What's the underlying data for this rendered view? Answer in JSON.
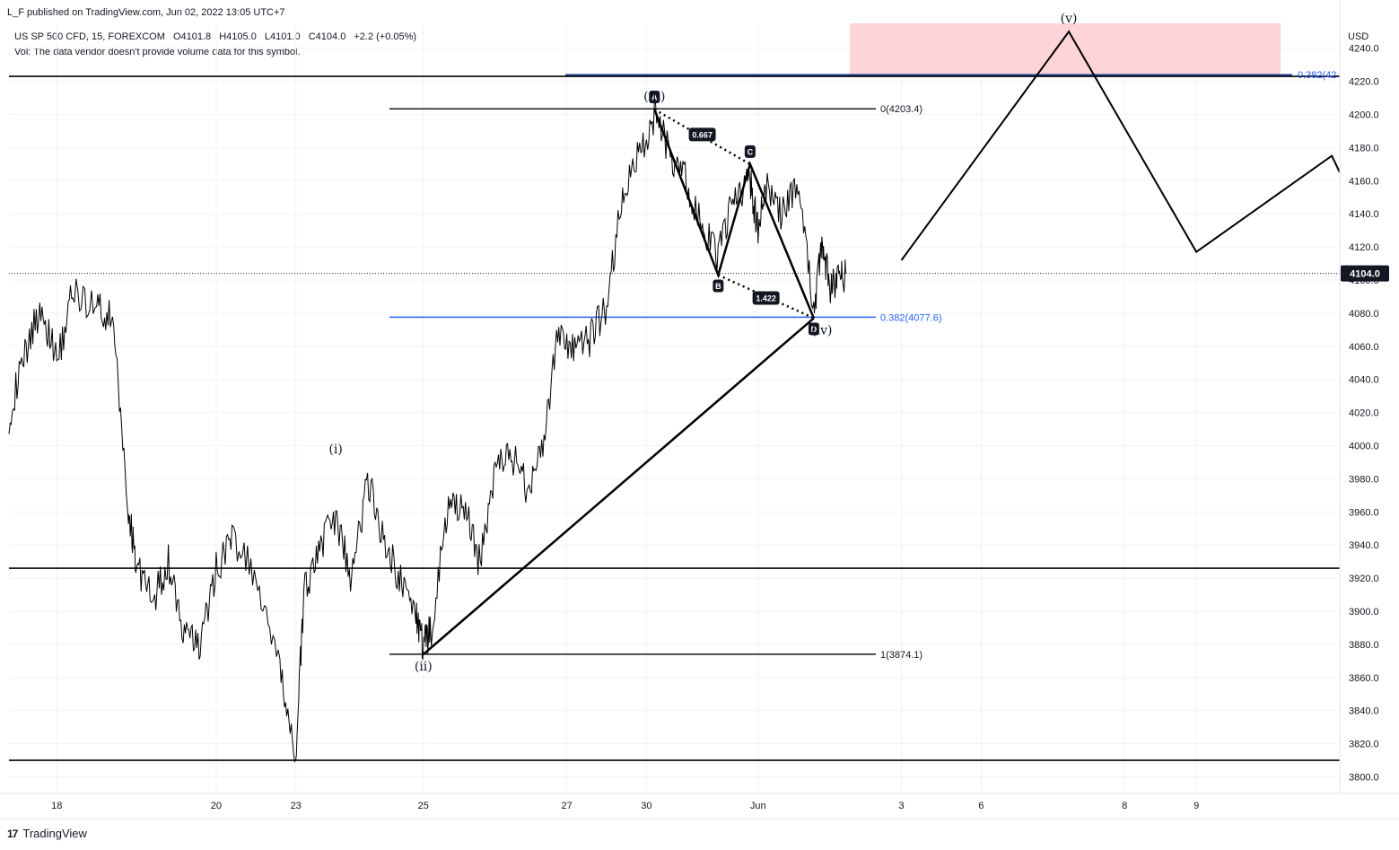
{
  "header": {
    "publisher": "L_F published on TradingView.com, Jun 02, 2022 13:05 UTC+7",
    "symbol": "US SP 500 CFD, 15, FOREXCOM",
    "ohlc": {
      "open": "O4101.8",
      "high": "H4105.0",
      "low": "L4101.0",
      "close": "C4104.0",
      "change": "+2.2 (+0.05%)"
    },
    "volume_note": "Vol: The data vendor doesn't provide volume data for this symbol."
  },
  "footer": {
    "brand": "TradingView",
    "logo_icon": "tradingview-logo-icon"
  },
  "chart_data": {
    "type": "line",
    "title": "US SP 500 CFD, 15, FOREXCOM",
    "currency": "USD",
    "ylim": [
      3790,
      4255
    ],
    "y_ticks": [
      3800,
      3820,
      3840,
      3860,
      3880,
      3900,
      3920,
      3940,
      3960,
      3980,
      4000,
      4020,
      4040,
      4060,
      4080,
      4100,
      4120,
      4140,
      4160,
      4180,
      4200,
      4220,
      4240
    ],
    "x_ticks": [
      "18",
      "20",
      "23",
      "25",
      "27",
      "30",
      "Jun",
      "3",
      "6",
      "8",
      "9"
    ],
    "x_tick_pos": [
      0.3,
      1.3,
      1.8,
      2.6,
      3.5,
      4.0,
      4.7,
      5.6,
      6.1,
      7.0,
      7.45
    ],
    "last_price": "4104.0",
    "last_price_value": 4104.0,
    "price_series": {
      "name": "",
      "x": [
        0.0,
        0.1,
        0.2,
        0.3,
        0.4,
        0.55,
        0.65,
        0.75,
        0.8,
        0.9,
        1.0,
        1.1,
        1.2,
        1.3,
        1.4,
        1.55,
        1.7,
        1.8,
        1.85,
        1.95,
        2.05,
        2.15,
        2.25,
        2.35,
        2.45,
        2.55,
        2.6,
        2.65,
        2.75,
        2.85,
        2.95,
        3.05,
        3.15,
        3.25,
        3.35,
        3.45,
        3.55,
        3.65,
        3.75,
        3.85,
        3.95,
        4.05,
        4.15,
        4.25,
        4.35,
        4.45,
        4.55,
        4.65,
        4.7,
        4.75,
        4.85,
        4.95,
        5.05,
        5.1,
        5.15,
        5.2,
        5.25
      ],
      "values": [
        4018,
        4055,
        4085,
        4050,
        4092,
        4085,
        4075,
        3960,
        3930,
        3905,
        3930,
        3885,
        3880,
        3925,
        3945,
        3920,
        3862,
        3812,
        3910,
        3940,
        3955,
        3920,
        3980,
        3945,
        3920,
        3900,
        3878,
        3890,
        3960,
        3965,
        3930,
        3985,
        3995,
        3975,
        4000,
        4070,
        4055,
        4065,
        4085,
        4150,
        4175,
        4200,
        4175,
        4160,
        4130,
        4115,
        4150,
        4160,
        4130,
        4155,
        4140,
        4160,
        4080,
        4125,
        4095,
        4100,
        4104
      ]
    },
    "horizontal_levels": [
      {
        "kind": "support-resistance",
        "value": 4223
      },
      {
        "kind": "support-resistance",
        "value": 3926
      },
      {
        "kind": "support-resistance",
        "value": 3810
      }
    ],
    "fib_levels": [
      {
        "label": "0(4203.4)",
        "value": 4203.4,
        "color": "#131722"
      },
      {
        "label": "0.382(4077.6)",
        "value": 4077.6,
        "color": "#2962ff"
      },
      {
        "label": "1(3874.1)",
        "value": 3874.1,
        "color": "#131722"
      }
    ],
    "fib_extension": {
      "label": "0.382(42",
      "value": 4223,
      "color": "#2962ff"
    },
    "target_zone": {
      "y_from": 4224,
      "y_to": 4255,
      "color": "#fdd5d8"
    },
    "wave_labels": [
      {
        "label": "(i)",
        "x": 2.05,
        "value": 3990,
        "placement": "above"
      },
      {
        "label": "(ii)",
        "x": 2.6,
        "value": 3874,
        "placement": "below"
      },
      {
        "label": "(iii)",
        "x": 4.05,
        "value": 4203,
        "placement": "above"
      },
      {
        "label": "(iv)",
        "x": 5.1,
        "value": 4077,
        "placement": "below"
      },
      {
        "label": "(v)",
        "x": 6.65,
        "value": 4250,
        "placement": "above"
      }
    ],
    "wave_iii_iv_line": {
      "points": [
        {
          "x": 2.6,
          "value": 3874
        },
        {
          "x": 5.05,
          "value": 4077
        }
      ]
    },
    "harmonic_pattern": {
      "points": [
        {
          "label": "A",
          "x": 4.05,
          "value": 4203
        },
        {
          "label": "B",
          "x": 4.45,
          "value": 4103
        },
        {
          "label": "C",
          "x": 4.65,
          "value": 4170
        },
        {
          "label": "D",
          "x": 5.05,
          "value": 4077
        }
      ],
      "ratios": [
        {
          "label": "0.667",
          "between": "A-C"
        },
        {
          "label": "1.422",
          "between": "B-D"
        }
      ]
    },
    "projection_path": {
      "points": [
        {
          "x": 5.6,
          "value": 4112
        },
        {
          "x": 6.65,
          "value": 4250
        },
        {
          "x": 7.45,
          "value": 4117
        },
        {
          "x": 8.3,
          "value": 4175
        },
        {
          "x": 8.35,
          "value": 4165
        }
      ]
    },
    "grid": true
  }
}
